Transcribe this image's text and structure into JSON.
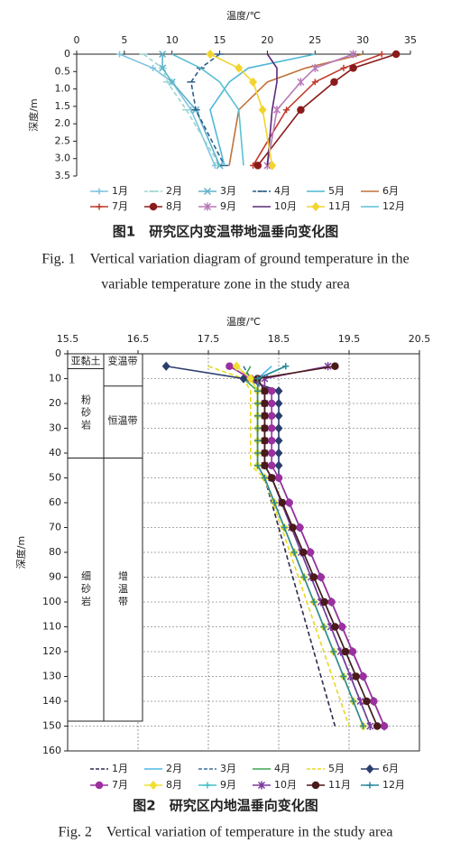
{
  "chart_data": [
    {
      "type": "line",
      "x_label": "温度/℃",
      "y_label": "深度/m",
      "xlim": [
        0,
        35
      ],
      "xticks": [
        0,
        5,
        10,
        15,
        20,
        25,
        30,
        35
      ],
      "ylim": [
        0,
        3.5
      ],
      "yticks": [
        0,
        0.5,
        {
          "value": 1,
          "label": "1.0"
        },
        1.5,
        {
          "value": 2,
          "label": "2.0"
        },
        2.5,
        {
          "value": 3,
          "label": "3.0"
        },
        3.5
      ],
      "grid": false,
      "y": [
        0,
        0.4,
        0.8,
        1.6,
        3.2
      ],
      "series": [
        {
          "name": "1月",
          "color": "#7fc4e0",
          "marker": "plus",
          "dashed": false,
          "values": [
            4.5,
            8,
            10,
            12,
            14.5
          ]
        },
        {
          "name": "2月",
          "color": "#9ad6d0",
          "marker": "dash",
          "dashed": true,
          "values": [
            7,
            9,
            9.5,
            11.5,
            15
          ]
        },
        {
          "name": "3月",
          "color": "#5fb3c9",
          "marker": "cross",
          "dashed": false,
          "values": [
            9,
            9,
            10,
            12.5,
            15
          ]
        },
        {
          "name": "4月",
          "color": "#2c5d8a",
          "marker": "dash",
          "dashed": true,
          "values": [
            15,
            13,
            12,
            12.5,
            15.5
          ]
        },
        {
          "name": "5月",
          "color": "#4fb8d6",
          "marker": "none",
          "dashed": false,
          "values": [
            25,
            18,
            16,
            14,
            15.5
          ]
        },
        {
          "name": "6月",
          "color": "#c0723a",
          "marker": "none",
          "dashed": false,
          "values": [
            30,
            24,
            20,
            17,
            16
          ]
        },
        {
          "name": "7月",
          "color": "#c0392b",
          "marker": "plus",
          "dashed": false,
          "values": [
            32,
            28,
            25,
            22,
            18.5
          ]
        },
        {
          "name": "8月",
          "color": "#8b1a1a",
          "marker": "circle",
          "dashed": false,
          "values": [
            33.5,
            29,
            27,
            23.5,
            19
          ]
        },
        {
          "name": "9月",
          "color": "#b87ab8",
          "marker": "star",
          "dashed": false,
          "values": [
            29,
            25,
            23.5,
            21,
            20
          ]
        },
        {
          "name": "10月",
          "color": "#5a2a7a",
          "marker": "none",
          "dashed": false,
          "values": [
            20,
            21,
            21,
            20.5,
            20
          ]
        },
        {
          "name": "11月",
          "color": "#f2d42e",
          "marker": "diamond",
          "dashed": false,
          "values": [
            14,
            17,
            18.5,
            19.5,
            20.5
          ]
        },
        {
          "name": "12月",
          "color": "#5bc0d6",
          "marker": "none",
          "dashed": false,
          "values": [
            10,
            13,
            15,
            17,
            17.5
          ]
        }
      ],
      "caption": "图1　研究区内变温带地温垂向变化图",
      "caption_en": [
        "Fig. 1　Vertical variation diagram of ground temperature in the",
        "variable temperature zone in the study area"
      ]
    },
    {
      "type": "line",
      "x_label": "温度/℃",
      "y_label": "深度/m",
      "xlim": [
        15.5,
        20.5
      ],
      "xticks": [
        15.5,
        16.5,
        17.5,
        18.5,
        19.5,
        20.5
      ],
      "ylim": [
        0,
        160
      ],
      "yticks": [
        0,
        10,
        20,
        30,
        40,
        50,
        60,
        70,
        80,
        90,
        100,
        110,
        120,
        130,
        140,
        150,
        160
      ],
      "grid": true,
      "y": [
        5,
        10,
        15,
        20,
        25,
        30,
        35,
        40,
        45,
        50,
        60,
        70,
        80,
        90,
        100,
        110,
        120,
        130,
        140,
        150
      ],
      "annotations": [
        "亚黏土",
        "变温带",
        "粉砂岩",
        "恒温带",
        "细砂岩",
        "增温带"
      ],
      "series": [
        {
          "name": "1月",
          "color": "#2d2d4d",
          "marker": "none",
          "dashed": true,
          "values": [
            17.9,
            18.1,
            18.2,
            18.2,
            18.2,
            18.2,
            18.2,
            18.2,
            18.2,
            18.3,
            18.4,
            18.5,
            18.6,
            18.7,
            18.8,
            18.9,
            19.0,
            19.1,
            19.2,
            19.3
          ]
        },
        {
          "name": "2月",
          "color": "#4db8e8",
          "marker": "none",
          "dashed": false,
          "values": [
            18.4,
            18.2,
            18.3,
            18.3,
            18.3,
            18.3,
            18.3,
            18.3,
            18.3,
            18.4,
            18.54,
            18.68,
            18.82,
            18.96,
            19.1,
            19.24,
            19.38,
            19.52,
            19.66,
            19.8
          ]
        },
        {
          "name": "3月",
          "color": "#3c6e9e",
          "marker": "none",
          "dashed": true,
          "values": [
            18.0,
            18.1,
            18.3,
            18.3,
            18.3,
            18.3,
            18.3,
            18.3,
            18.3,
            18.4,
            18.54,
            18.68,
            18.82,
            18.96,
            19.1,
            19.24,
            19.38,
            19.52,
            19.66,
            19.8
          ]
        },
        {
          "name": "4月",
          "color": "#3aa655",
          "marker": "none",
          "dashed": false,
          "values": [
            18.1,
            18.0,
            18.2,
            18.2,
            18.2,
            18.2,
            18.2,
            18.2,
            18.2,
            18.3,
            18.44,
            18.58,
            18.72,
            18.86,
            19.0,
            19.14,
            19.28,
            19.42,
            19.56,
            19.7
          ]
        },
        {
          "name": "5月",
          "color": "#e8d820",
          "marker": "none",
          "dashed": true,
          "values": [
            17.5,
            18.0,
            18.1,
            18.1,
            18.1,
            18.1,
            18.1,
            18.1,
            18.1,
            18.3,
            18.42,
            18.54,
            18.66,
            18.78,
            18.9,
            19.02,
            19.14,
            19.26,
            19.38,
            19.5
          ]
        },
        {
          "name": "6月",
          "color": "#2c3e6e",
          "marker": "diamond",
          "dashed": false,
          "values": [
            16.9,
            18.0,
            18.5,
            18.5,
            18.5,
            18.5,
            18.5,
            18.5,
            18.5,
            18.5,
            18.65,
            18.8,
            18.95,
            19.1,
            19.25,
            19.4,
            19.55,
            19.7,
            19.85,
            20.0
          ]
        },
        {
          "name": "7月",
          "color": "#9b30a0",
          "marker": "circle",
          "dashed": false,
          "values": [
            17.8,
            18.1,
            18.4,
            18.4,
            18.4,
            18.4,
            18.4,
            18.4,
            18.4,
            18.5,
            18.65,
            18.8,
            18.95,
            19.1,
            19.25,
            19.4,
            19.55,
            19.7,
            19.85,
            20.0
          ]
        },
        {
          "name": "8月",
          "color": "#f0e030",
          "marker": "diamond",
          "dashed": false,
          "values": [
            17.9,
            18.1,
            18.2,
            18.2,
            18.2,
            18.2,
            18.2,
            18.2,
            18.2,
            18.3,
            18.44,
            18.58,
            18.72,
            18.86,
            19.0,
            19.14,
            19.28,
            19.42,
            19.56,
            19.7
          ]
        },
        {
          "name": "9月",
          "color": "#40c0c8",
          "marker": "plus",
          "dashed": false,
          "values": [
            18.6,
            18.2,
            18.3,
            18.3,
            18.3,
            18.3,
            18.3,
            18.3,
            18.3,
            18.4,
            18.55,
            18.7,
            18.85,
            19.0,
            19.15,
            19.3,
            19.45,
            19.6,
            19.75,
            19.9
          ]
        },
        {
          "name": "10月",
          "color": "#7a3a9a",
          "marker": "star",
          "dashed": false,
          "values": [
            19.2,
            18.3,
            18.3,
            18.3,
            18.3,
            18.3,
            18.3,
            18.3,
            18.3,
            18.4,
            18.54,
            18.68,
            18.82,
            18.96,
            19.1,
            19.24,
            19.38,
            19.52,
            19.66,
            19.8
          ]
        },
        {
          "name": "11月",
          "color": "#4a1a1a",
          "marker": "circle",
          "dashed": false,
          "values": [
            19.3,
            18.2,
            18.3,
            18.3,
            18.3,
            18.3,
            18.3,
            18.3,
            18.3,
            18.4,
            18.55,
            18.7,
            18.85,
            19.0,
            19.15,
            19.3,
            19.45,
            19.6,
            19.75,
            19.9
          ]
        },
        {
          "name": "12月",
          "color": "#2a8a9a",
          "marker": "plus",
          "dashed": false,
          "values": [
            18.6,
            18.2,
            18.2,
            18.2,
            18.2,
            18.2,
            18.2,
            18.2,
            18.2,
            18.3,
            18.44,
            18.58,
            18.72,
            18.86,
            19.0,
            19.14,
            19.28,
            19.42,
            19.56,
            19.7
          ]
        }
      ],
      "caption": "图2　研究区内地温垂向变化图",
      "caption_en": [
        "Fig. 2　Vertical variation of temperature in the study area"
      ]
    }
  ]
}
